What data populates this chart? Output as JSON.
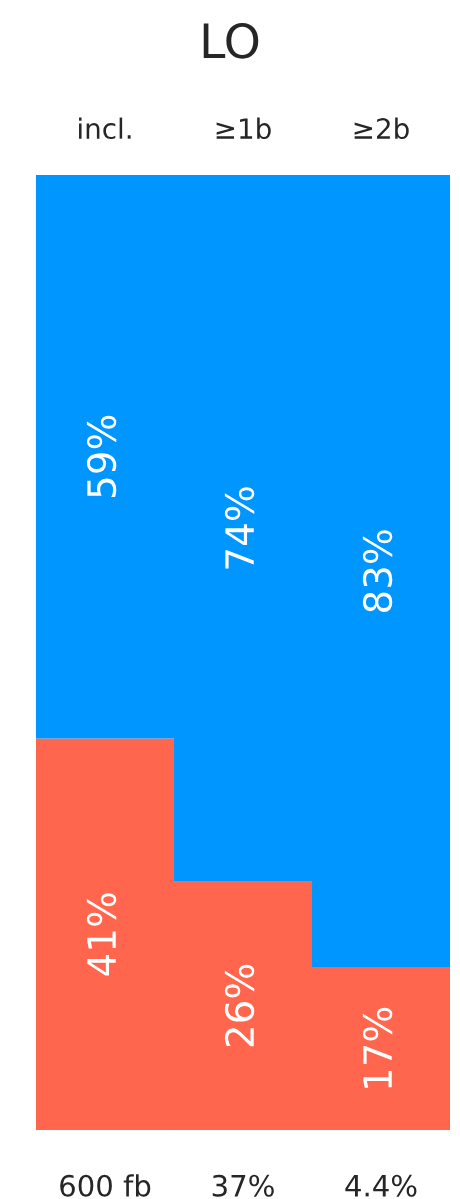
{
  "chart_data": {
    "type": "bar",
    "title": "LO",
    "stacked": true,
    "categories": [
      "incl.",
      "≥1b",
      "≥2b"
    ],
    "series": [
      {
        "color": "#ff664d",
        "values": [
          41,
          26,
          17
        ],
        "value_labels": [
          "41%",
          "26%",
          "17%"
        ]
      },
      {
        "color": "#0096ff",
        "values": [
          59,
          74,
          83
        ],
        "value_labels": [
          "59%",
          "74%",
          "83%"
        ]
      }
    ],
    "ylim": [
      0,
      100
    ],
    "tick_labels": "x",
    "grid": false,
    "legend": false,
    "annotations": [
      "600 fb",
      "37%",
      "4.4%"
    ]
  }
}
